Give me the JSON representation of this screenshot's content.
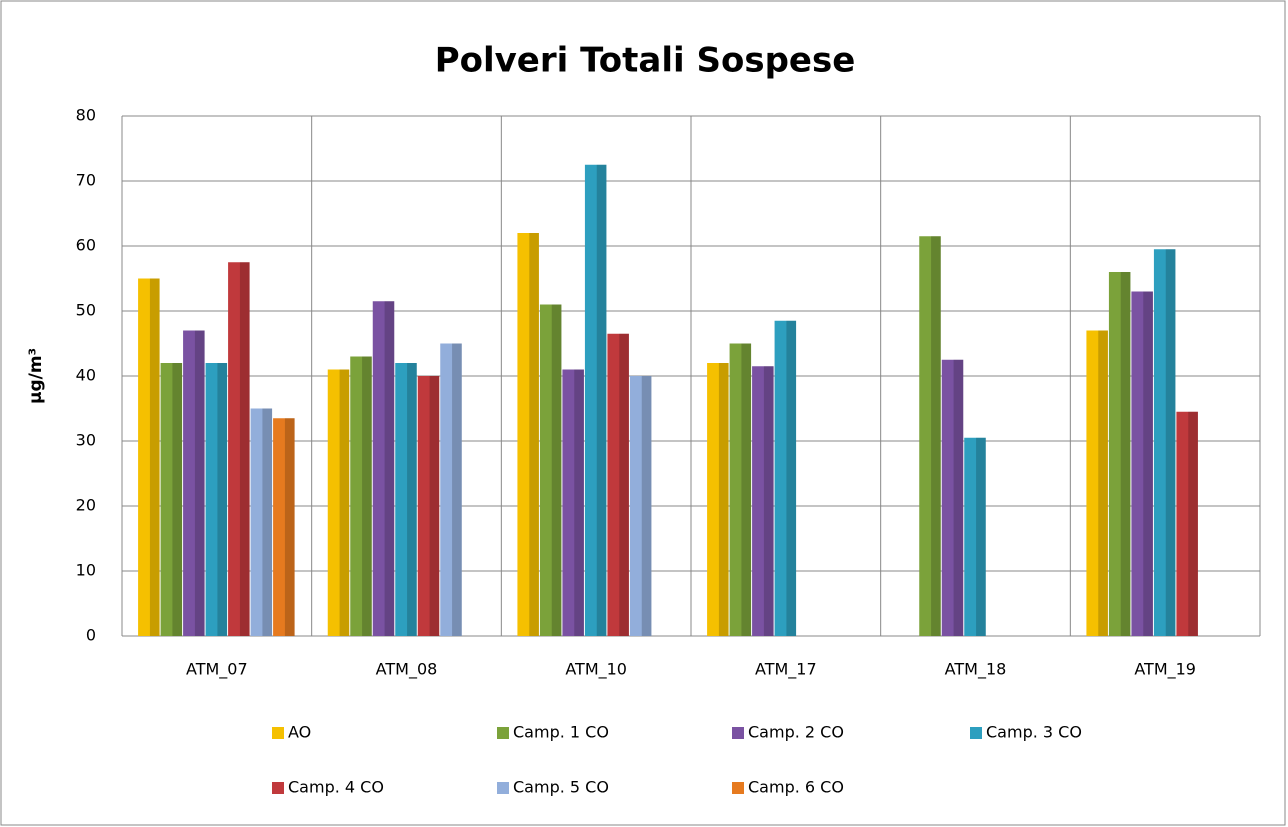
{
  "chart_data": {
    "type": "bar",
    "title": "Polveri Totali Sospese",
    "y_label": "µg/m³",
    "categories": [
      "ATM_07",
      "ATM_08",
      "ATM_10",
      "ATM_17",
      "ATM_18",
      "ATM_19"
    ],
    "series": [
      {
        "name": "AO",
        "color": "#f5c000",
        "values": [
          55,
          41,
          62,
          42,
          null,
          47
        ]
      },
      {
        "name": "Camp. 1 CO",
        "color": "#7ba23a",
        "values": [
          42,
          43,
          51,
          45,
          61.5,
          56
        ]
      },
      {
        "name": "Camp. 2 CO",
        "color": "#7a52a2",
        "values": [
          47,
          51.5,
          41,
          41.5,
          42.5,
          53
        ]
      },
      {
        "name": "Camp. 3 CO",
        "color": "#2d9fbf",
        "values": [
          42,
          42,
          72.5,
          48.5,
          30.5,
          59.5
        ]
      },
      {
        "name": "Camp. 4 CO",
        "color": "#c0393c",
        "values": [
          57.5,
          40,
          46.5,
          null,
          null,
          34.5
        ]
      },
      {
        "name": "Camp. 5 CO",
        "color": "#92aedb",
        "values": [
          35,
          45,
          40,
          null,
          null,
          null
        ]
      },
      {
        "name": "Camp. 6 CO",
        "color": "#e67a1f",
        "values": [
          33.5,
          null,
          null,
          null,
          null,
          null
        ]
      }
    ],
    "ylim": [
      0,
      80
    ],
    "yticks": [
      0,
      10,
      20,
      30,
      40,
      50,
      60,
      70,
      80
    ],
    "grid": true
  }
}
